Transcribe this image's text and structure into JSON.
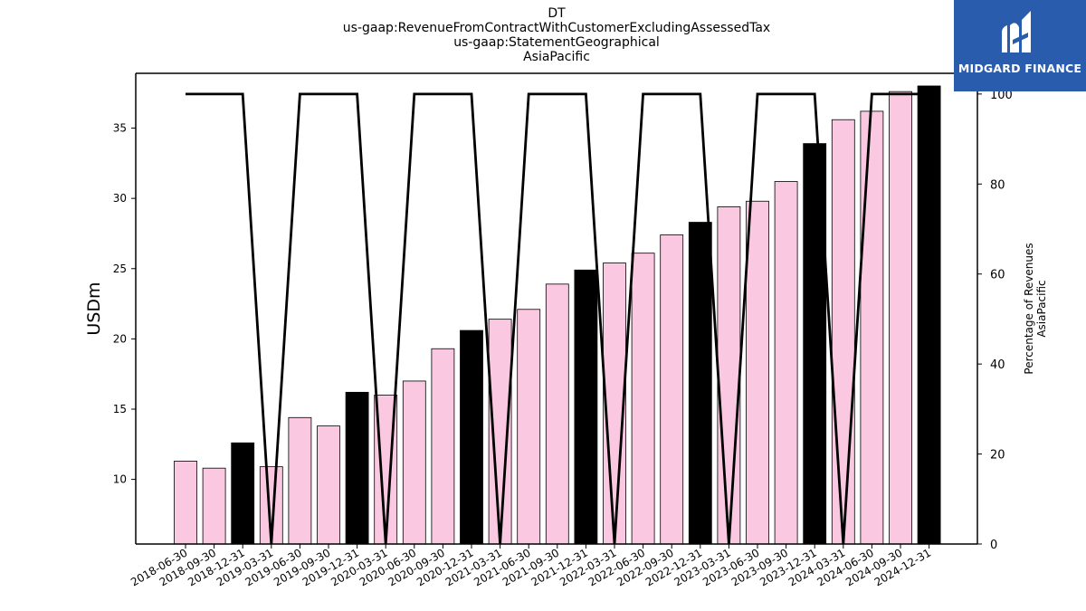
{
  "title_lines": [
    "DT",
    "us-gaap:RevenueFromContractWithCustomerExcludingAssessedTax",
    "us-gaap:StatementGeographical",
    "AsiaPacific"
  ],
  "logo": {
    "text": "MIDGARD FINANCE",
    "color": "#2a5cad"
  },
  "colors": {
    "bar_default": "#fbc8e1",
    "bar_q4": "#000000",
    "line": "#000000"
  },
  "chart_data": {
    "type": "bar",
    "title": "DT\nus-gaap:RevenueFromContractWithCustomerExcludingAssessedTax\nus-gaap:StatementGeographical\nAsiaPacific",
    "xlabel": "",
    "ylabel": "USDm",
    "y2label": "Percentage of Revenues AsiaPacific",
    "ylim": [
      5.4,
      38.9
    ],
    "y2lim": [
      0,
      104.6
    ],
    "yticks": [
      10,
      15,
      20,
      25,
      30,
      35
    ],
    "y2ticks": [
      0,
      20,
      40,
      60,
      80,
      100
    ],
    "categories": [
      "2018-06-30",
      "2018-09-30",
      "2018-12-31",
      "2019-03-31",
      "2019-06-30",
      "2019-09-30",
      "2019-12-31",
      "2020-03-31",
      "2020-06-30",
      "2020-09-30",
      "2020-12-31",
      "2021-03-31",
      "2021-06-30",
      "2021-09-30",
      "2021-12-31",
      "2022-03-31",
      "2022-06-30",
      "2022-09-30",
      "2022-12-31",
      "2023-03-31",
      "2023-06-30",
      "2023-09-30",
      "2023-12-31",
      "2024-03-31",
      "2024-06-30",
      "2024-09-30",
      "2024-12-31"
    ],
    "series": [
      {
        "type": "bar",
        "values": [
          11.3,
          10.8,
          12.6,
          10.9,
          14.4,
          13.8,
          16.2,
          16.0,
          17.0,
          19.3,
          20.6,
          21.4,
          22.1,
          23.9,
          24.9,
          25.4,
          26.1,
          27.4,
          28.3,
          29.4,
          29.8,
          31.2,
          33.9,
          35.6,
          36.2,
          37.6,
          38.0
        ],
        "highlight": [
          false,
          false,
          true,
          false,
          false,
          false,
          true,
          false,
          false,
          false,
          true,
          false,
          false,
          false,
          true,
          false,
          false,
          false,
          true,
          false,
          false,
          false,
          true,
          false,
          false,
          false,
          true
        ]
      },
      {
        "type": "line",
        "axis": "right",
        "values": [
          100,
          100,
          100,
          0,
          100,
          100,
          100,
          0,
          100,
          100,
          100,
          0,
          100,
          100,
          100,
          0,
          100,
          100,
          100,
          0,
          100,
          100,
          100,
          0,
          100,
          100,
          100
        ]
      }
    ],
    "grid": false,
    "legend": "none"
  }
}
